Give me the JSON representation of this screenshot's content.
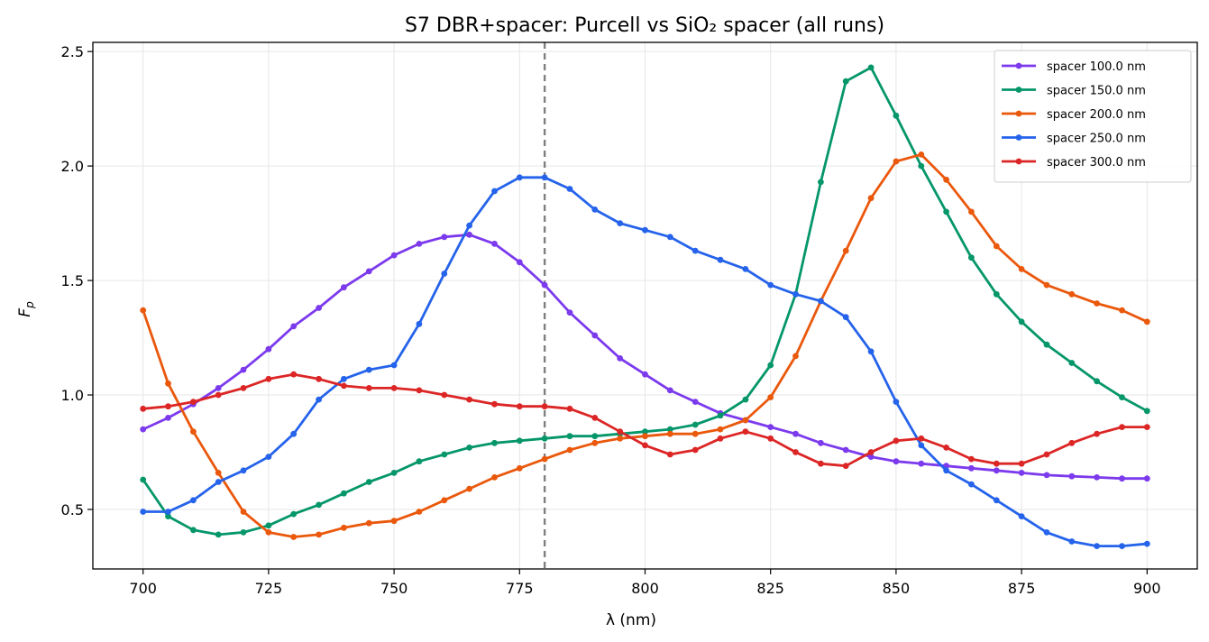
{
  "chart_data": {
    "type": "line",
    "title": "S7 DBR+spacer: Purcell vs SiO₂ spacer (all runs)",
    "xlabel": "λ (nm)",
    "ylabel_main": "F",
    "ylabel_sub": "p",
    "xlim": [
      690,
      910
    ],
    "ylim": [
      0.24,
      2.54
    ],
    "xticks": [
      700,
      725,
      750,
      775,
      800,
      825,
      850,
      875,
      900
    ],
    "yticks": [
      0.5,
      1.0,
      1.5,
      2.0,
      2.5
    ],
    "ytick_labels": [
      "0.5",
      "1.0",
      "1.5",
      "2.0",
      "2.5"
    ],
    "grid": true,
    "legend_position": "top-right",
    "vline": {
      "x": 780,
      "style": "dashed",
      "color": "#7f7f7f"
    },
    "x": [
      700,
      705,
      710,
      715,
      720,
      725,
      730,
      735,
      740,
      745,
      750,
      755,
      760,
      765,
      770,
      775,
      780,
      785,
      790,
      795,
      800,
      805,
      810,
      815,
      820,
      825,
      830,
      835,
      840,
      845,
      850,
      855,
      860,
      865,
      870,
      875,
      880,
      885,
      890,
      895,
      900
    ],
    "series": [
      {
        "name": "spacer 100.0 nm",
        "color": "#7c3aed",
        "values": [
          0.85,
          0.9,
          0.96,
          1.03,
          1.11,
          1.2,
          1.3,
          1.38,
          1.47,
          1.54,
          1.61,
          1.66,
          1.69,
          1.7,
          1.66,
          1.58,
          1.48,
          1.36,
          1.26,
          1.16,
          1.09,
          1.02,
          0.97,
          0.92,
          0.89,
          0.86,
          0.83,
          0.79,
          0.76,
          0.73,
          0.71,
          0.7,
          0.69,
          0.68,
          0.67,
          0.66,
          0.65,
          0.645,
          0.64,
          0.635,
          0.635
        ]
      },
      {
        "name": "spacer 150.0 nm",
        "color": "#059669",
        "values": [
          0.63,
          0.47,
          0.41,
          0.39,
          0.4,
          0.43,
          0.48,
          0.52,
          0.57,
          0.62,
          0.66,
          0.71,
          0.74,
          0.77,
          0.79,
          0.8,
          0.81,
          0.82,
          0.82,
          0.83,
          0.84,
          0.85,
          0.87,
          0.91,
          0.98,
          1.13,
          1.44,
          1.93,
          2.37,
          2.43,
          2.22,
          2.0,
          1.8,
          1.6,
          1.44,
          1.32,
          1.22,
          1.14,
          1.06,
          0.99,
          0.93
        ]
      },
      {
        "name": "spacer 200.0 nm",
        "color": "#ea580c",
        "values": [
          1.37,
          1.05,
          0.84,
          0.66,
          0.49,
          0.4,
          0.38,
          0.39,
          0.42,
          0.44,
          0.45,
          0.49,
          0.54,
          0.59,
          0.64,
          0.68,
          0.72,
          0.76,
          0.79,
          0.81,
          0.82,
          0.83,
          0.83,
          0.85,
          0.89,
          0.99,
          1.17,
          1.41,
          1.63,
          1.86,
          2.02,
          2.05,
          1.94,
          1.8,
          1.65,
          1.55,
          1.48,
          1.44,
          1.4,
          1.37,
          1.32
        ]
      },
      {
        "name": "spacer 250.0 nm",
        "color": "#2563eb",
        "values": [
          0.49,
          0.49,
          0.54,
          0.62,
          0.67,
          0.73,
          0.83,
          0.98,
          1.07,
          1.11,
          1.13,
          1.31,
          1.53,
          1.74,
          1.89,
          1.95,
          1.95,
          1.9,
          1.81,
          1.75,
          1.72,
          1.69,
          1.63,
          1.59,
          1.55,
          1.48,
          1.44,
          1.41,
          1.34,
          1.19,
          0.97,
          0.78,
          0.67,
          0.61,
          0.54,
          0.47,
          0.4,
          0.36,
          0.34,
          0.34,
          0.35
        ]
      },
      {
        "name": "spacer 300.0 nm",
        "color": "#dc2626",
        "values": [
          0.94,
          0.95,
          0.97,
          1.0,
          1.03,
          1.07,
          1.09,
          1.07,
          1.04,
          1.03,
          1.03,
          1.02,
          1.0,
          0.98,
          0.96,
          0.95,
          0.95,
          0.94,
          0.9,
          0.84,
          0.78,
          0.74,
          0.76,
          0.81,
          0.84,
          0.81,
          0.75,
          0.7,
          0.69,
          0.75,
          0.8,
          0.81,
          0.77,
          0.72,
          0.7,
          0.7,
          0.74,
          0.79,
          0.83,
          0.86,
          0.86
        ]
      }
    ]
  }
}
